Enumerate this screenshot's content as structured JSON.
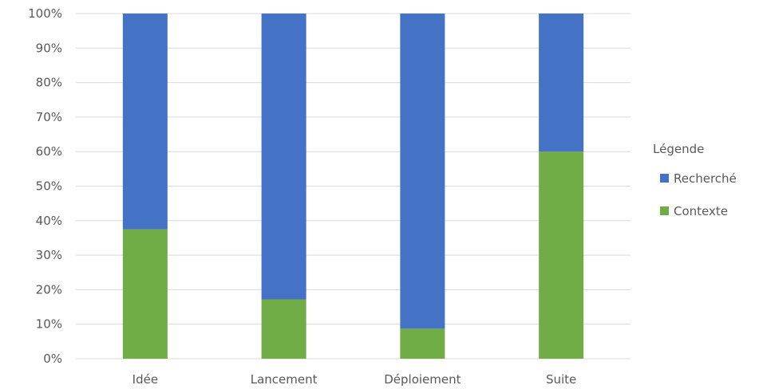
{
  "chart_data": {
    "type": "bar",
    "stacked": true,
    "percent": true,
    "categories": [
      "Idée",
      "Lancement",
      "Déploiement",
      "Suite"
    ],
    "series": [
      {
        "name": "Contexte",
        "values": [
          37.5,
          17.2,
          8.7,
          60.0
        ],
        "color": "#70ad47"
      },
      {
        "name": "Recherché",
        "values": [
          62.5,
          82.8,
          91.3,
          40.0
        ],
        "color": "#4472c4"
      }
    ],
    "ylim": [
      0,
      100
    ],
    "yticks": [
      "0%",
      "10%",
      "20%",
      "30%",
      "40%",
      "50%",
      "60%",
      "70%",
      "80%",
      "90%",
      "100%"
    ],
    "grid": true,
    "legend": {
      "title": "Légende",
      "position": "right",
      "entries": [
        "Recherché",
        "Contexte"
      ]
    }
  }
}
